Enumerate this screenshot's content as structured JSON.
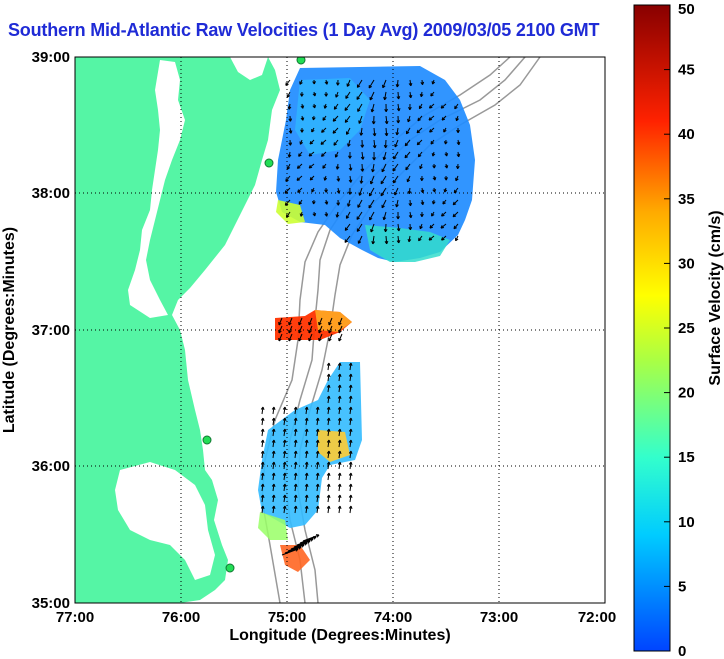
{
  "title": "Southern Mid-Atlantic Raw Velocities (1 Day Avg) 2009/03/05 2100 GMT",
  "map": {
    "x_axis_label": "Longitude (Degrees:Minutes)",
    "y_axis_label": "Latitude (Degrees:Minutes)",
    "x_ticks": [
      "77:00",
      "76:00",
      "75:00",
      "74:00",
      "73:00",
      "72:00"
    ],
    "y_ticks": [
      "39:00",
      "38:00",
      "37:00",
      "36:00",
      "35:00"
    ],
    "lon_range": [
      -77,
      -72
    ],
    "lat_range": [
      35,
      39
    ],
    "grid": "dotted",
    "colors": {
      "land": "#55f5a5",
      "water": "#ffffff",
      "isobath": "#999999",
      "station": "#22dd55",
      "arrow": "#000000"
    }
  },
  "colorbar": {
    "label": "Surface Velocity (cm/s)",
    "ticks": [
      "50",
      "45",
      "40",
      "35",
      "30",
      "25",
      "20",
      "15",
      "10",
      "5",
      "0"
    ],
    "range": [
      0,
      50
    ],
    "colormap": "jet"
  }
}
